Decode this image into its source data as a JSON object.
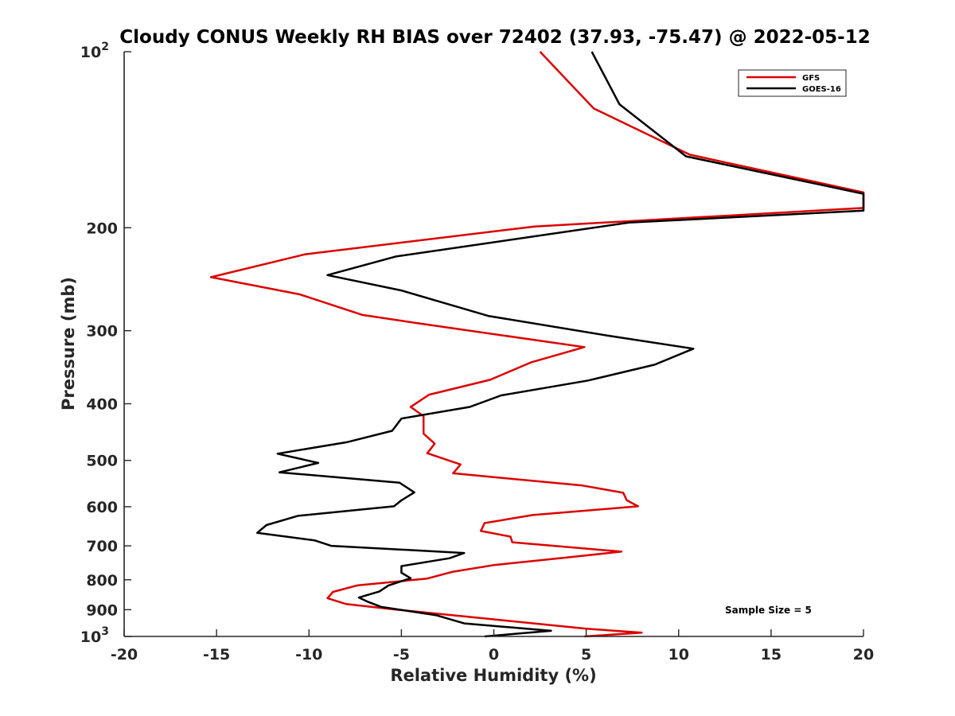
{
  "chart_data": {
    "type": "line",
    "title": "Cloudy CONUS Weekly RH BIAS over 72402 (37.93, -75.47) @ 2022-05-12",
    "xlabel": "Relative Humidity (%)",
    "ylabel": "Pressure (mb)",
    "xlim": [
      -20,
      20
    ],
    "ylim": [
      100,
      1000
    ],
    "y_scale": "log",
    "y_reversed": true,
    "grid": false,
    "legend_position": "top-right",
    "x_ticks": [
      "-20",
      "-15",
      "-10",
      "-5",
      "0",
      "5",
      "10",
      "15",
      "20"
    ],
    "y_ticks": [
      {
        "value": 100,
        "base": "10",
        "exp": "2"
      },
      {
        "value": 200,
        "label": "200"
      },
      {
        "value": 300,
        "label": "300"
      },
      {
        "value": 400,
        "label": "400"
      },
      {
        "value": 500,
        "label": "500"
      },
      {
        "value": 600,
        "label": "600"
      },
      {
        "value": 700,
        "label": "700"
      },
      {
        "value": 800,
        "label": "800"
      },
      {
        "value": 900,
        "label": "900"
      },
      {
        "value": 1000,
        "base": "10",
        "exp": "3"
      }
    ],
    "annotation": "Sample Size = 5",
    "series": [
      {
        "name": "GFS",
        "color": "#dd0000",
        "points": [
          [
            2.5,
            100
          ],
          [
            5.4,
            125
          ],
          [
            10.6,
            150
          ],
          [
            20,
            174
          ],
          [
            20,
            185
          ],
          [
            2.2,
            199
          ],
          [
            -10.2,
            222
          ],
          [
            -15.3,
            243
          ],
          [
            -10.5,
            260
          ],
          [
            -7.1,
            282
          ],
          [
            -4.2,
            291
          ],
          [
            4.9,
            320
          ],
          [
            2.0,
            340
          ],
          [
            -0.2,
            364
          ],
          [
            -3.5,
            386
          ],
          [
            -4.5,
            405
          ],
          [
            -3.8,
            420
          ],
          [
            -3.8,
            450
          ],
          [
            -3.2,
            468
          ],
          [
            -3.6,
            486
          ],
          [
            -1.8,
            508
          ],
          [
            -2.2,
            526
          ],
          [
            4.8,
            552
          ],
          [
            7.0,
            568
          ],
          [
            7.2,
            585
          ],
          [
            7.8,
            599
          ],
          [
            2.1,
            620
          ],
          [
            -0.5,
            640
          ],
          [
            -0.7,
            660
          ],
          [
            0.9,
            675
          ],
          [
            1.0,
            690
          ],
          [
            6.9,
            716
          ],
          [
            3.9,
            733
          ],
          [
            0.0,
            755
          ],
          [
            -2.2,
            775
          ],
          [
            -3.6,
            796
          ],
          [
            -7.4,
            818
          ],
          [
            -8.7,
            839
          ],
          [
            -9.0,
            860
          ],
          [
            -8.0,
            880
          ],
          [
            -5.5,
            898
          ],
          [
            0.0,
            935
          ],
          [
            5.0,
            970
          ],
          [
            8.0,
            985
          ],
          [
            4.9,
            1000
          ]
        ]
      },
      {
        "name": "GOES-16",
        "color": "#000000",
        "points": [
          [
            5.3,
            100
          ],
          [
            6.8,
            123
          ],
          [
            10.4,
            151
          ],
          [
            20,
            175
          ],
          [
            20,
            187
          ],
          [
            7.3,
            196
          ],
          [
            -5.3,
            224
          ],
          [
            -9.0,
            241
          ],
          [
            -5.0,
            256
          ],
          [
            -0.3,
            283
          ],
          [
            6.2,
            306
          ],
          [
            10.8,
            322
          ],
          [
            8.7,
            343
          ],
          [
            5.1,
            365
          ],
          [
            0.4,
            387
          ],
          [
            -1.3,
            405
          ],
          [
            -5.0,
            424
          ],
          [
            -5.5,
            445
          ],
          [
            -7.9,
            465
          ],
          [
            -11.7,
            487
          ],
          [
            -9.5,
            505
          ],
          [
            -11.6,
            524
          ],
          [
            -5.1,
            546
          ],
          [
            -4.3,
            567
          ],
          [
            -5.0,
            585
          ],
          [
            -5.4,
            599
          ],
          [
            -10.6,
            622
          ],
          [
            -12.3,
            645
          ],
          [
            -12.8,
            665
          ],
          [
            -9.7,
            685
          ],
          [
            -8.8,
            700
          ],
          [
            -1.6,
            720
          ],
          [
            -2.4,
            735
          ],
          [
            -5.0,
            758
          ],
          [
            -5.0,
            778
          ],
          [
            -4.5,
            795
          ],
          [
            -5.7,
            818
          ],
          [
            -6.2,
            838
          ],
          [
            -7.3,
            858
          ],
          [
            -6.8,
            873
          ],
          [
            -6.1,
            890
          ],
          [
            -3.1,
            920
          ],
          [
            -1.6,
            950
          ],
          [
            3.1,
            978
          ],
          [
            -0.5,
            1000
          ]
        ]
      }
    ]
  }
}
